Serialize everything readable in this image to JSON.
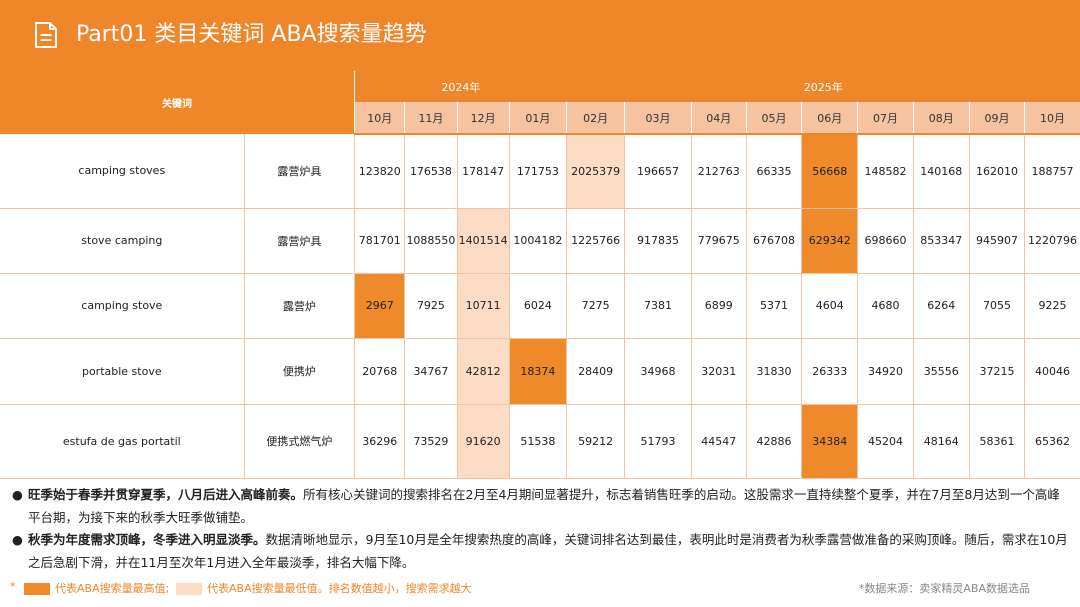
{
  "header": {
    "title": "Part01 类目关键词 ABA搜索量趋势"
  },
  "table": {
    "keyword_header": "关键词",
    "years": [
      {
        "label": "2024年"
      },
      {
        "label": "2025年"
      }
    ],
    "months": [
      "10月",
      "11月",
      "12月",
      "01月",
      "02月",
      "03月",
      "04月",
      "05月",
      "06月",
      "07月",
      "08月",
      "09月",
      "10月"
    ],
    "rows": [
      {
        "en": "camping stoves",
        "cn": "露营炉具",
        "values": [
          "123820",
          "176538",
          "178147",
          "171753",
          "2025379",
          "196657",
          "212763",
          "66335",
          "56668",
          "148582",
          "140168",
          "162010",
          "188757"
        ],
        "high_index": 8,
        "low_index": 4
      },
      {
        "en": "stove camping",
        "cn": "露营炉具",
        "values": [
          "781701",
          "1088550",
          "1401514",
          "1004182",
          "1225766",
          "917835",
          "779675",
          "676708",
          "629342",
          "698660",
          "853347",
          "945907",
          "1220796"
        ],
        "high_index": 8,
        "low_index": 2
      },
      {
        "en": "camping stove",
        "cn": "露营炉",
        "values": [
          "2967",
          "7925",
          "10711",
          "6024",
          "7275",
          "7381",
          "6899",
          "5371",
          "4604",
          "4680",
          "6264",
          "7055",
          "9225"
        ],
        "high_index": 0,
        "low_index": 2
      },
      {
        "en": "portable stove",
        "cn": "便携炉",
        "values": [
          "20768",
          "34767",
          "42812",
          "18374",
          "28409",
          "34968",
          "32031",
          "31830",
          "26333",
          "34920",
          "35556",
          "37215",
          "40046"
        ],
        "high_index": 3,
        "low_index": 2
      },
      {
        "en": "estufa de gas portatil",
        "cn": "便携式燃气炉",
        "values": [
          "36296",
          "73529",
          "91620",
          "51538",
          "59212",
          "51793",
          "44547",
          "42886",
          "34384",
          "45204",
          "48164",
          "58361",
          "65362"
        ],
        "high_index": 8,
        "low_index": 2
      }
    ]
  },
  "notes": [
    {
      "bullet": "●",
      "bold": "旺季始于春季并贯穿夏季，八月后进入高峰前奏。",
      "text": "所有核心关键词的搜索排名在2月至4月期间显著提升，标志着销售旺季的启动。这股需求一直持续整个夏季，并在7月至8月达到一个高峰平台期，为接下来的秋季大旺季做铺垫。"
    },
    {
      "bullet": "●",
      "bold": "秋季为年度需求顶峰，冬季进入明显淡季。",
      "text": "数据清晰地显示，9月至10月是全年搜索热度的高峰，关键词排名达到最佳，表明此时是消费者为秋季露营做准备的采购顶峰。随后，需求在10月之后急剧下滑，并在11月至次年1月进入全年最淡季，排名大幅下降。"
    }
  ],
  "legend": {
    "star": "*",
    "high_label": "代表ABA搜索量最高值;",
    "low_label": "代表ABA搜索量最低值。排名数值越小，搜索需求越大",
    "source": "*数据来源：卖家精灵ABA数据选品"
  },
  "colors": {
    "accent": "#f0862a",
    "high": "#ef8a2b",
    "low": "#fcdcc4",
    "month_header": "#f6c3a0"
  }
}
